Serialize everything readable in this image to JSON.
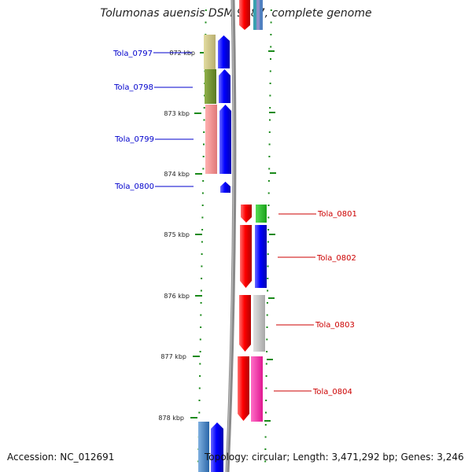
{
  "title": "Tolumonas auensis DSM 9187, complete genome",
  "accession": "Accession: NC_012691",
  "topology": "Topology: circular; Length: 3,471,292 bp; Genes: 3,246",
  "kbp_ticks": [
    "872 kbp",
    "873 kbp",
    "874 kbp",
    "875 kbp",
    "876 kbp",
    "877 kbp",
    "878 kbp"
  ],
  "genes_left": [
    {
      "label": "Tola_0797",
      "color": "#0000cc"
    },
    {
      "label": "Tola_0798",
      "color": "#0000cc"
    },
    {
      "label": "Tola_0799",
      "color": "#0000cc"
    },
    {
      "label": "Tola_0800",
      "color": "#0000cc"
    }
  ],
  "genes_right": [
    {
      "label": "Tola_0801",
      "color": "#cc0000"
    },
    {
      "label": "Tola_0802",
      "color": "#cc0000"
    },
    {
      "label": "Tola_0803",
      "color": "#cc0000"
    },
    {
      "label": "Tola_0804",
      "color": "#cc0000"
    }
  ],
  "colors": {
    "tick_green": "#1a8a1a",
    "backbone": "#8a8a8a",
    "forward_blue": "#0000ff",
    "reverse_red": "#ff0000"
  }
}
